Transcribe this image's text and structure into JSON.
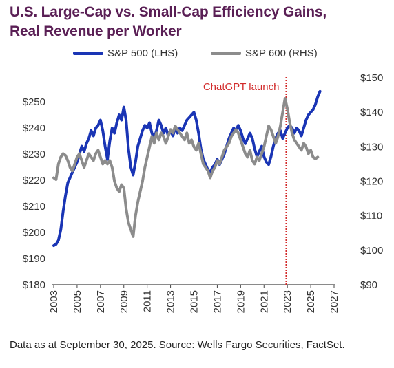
{
  "title_line1": "U.S. Large-Cap vs. Small-Cap Efficiency Gains,",
  "title_line2": "Real Revenue per Worker",
  "source": "Data as at September 30, 2025. Source: Wells Fargo Securities, FactSet.",
  "chart_data": {
    "type": "line",
    "title": "U.S. Large-Cap vs. Small-Cap Efficiency Gains, Real Revenue per Worker",
    "xlim": [
      2003,
      2027
    ],
    "x_ticks": [
      "2003",
      "2005",
      "2007",
      "2009",
      "2011",
      "2013",
      "2015",
      "2017",
      "2019",
      "2021",
      "2023",
      "2025",
      "2027"
    ],
    "y_left": {
      "lim": [
        180,
        250
      ],
      "ticks": [
        "$180",
        "$190",
        "$200",
        "$210",
        "$220",
        "$230",
        "$240",
        "$250"
      ]
    },
    "y_right": {
      "lim": [
        90,
        150
      ],
      "ticks": [
        "$90",
        "$100",
        "$110",
        "$120",
        "$130",
        "$140",
        "$150"
      ]
    },
    "grid": false,
    "legend": "top-center",
    "annotation": {
      "text": "ChatGPT launch",
      "x": 2022.9,
      "color": "#d22b2b",
      "style": "dotted-vertical-line"
    },
    "series": [
      {
        "name": "S&P 500 (LHS)",
        "axis": "left",
        "color": "#1a35b5",
        "points": [
          [
            2003.0,
            195.0
          ],
          [
            2003.2,
            195.5
          ],
          [
            2003.4,
            197
          ],
          [
            2003.6,
            201
          ],
          [
            2003.8,
            208
          ],
          [
            2004.0,
            214
          ],
          [
            2004.2,
            219
          ],
          [
            2004.4,
            221
          ],
          [
            2004.6,
            223
          ],
          [
            2004.8,
            225
          ],
          [
            2005.0,
            227
          ],
          [
            2005.2,
            230
          ],
          [
            2005.4,
            233
          ],
          [
            2005.6,
            231
          ],
          [
            2005.8,
            234
          ],
          [
            2006.0,
            236
          ],
          [
            2006.2,
            239
          ],
          [
            2006.4,
            237
          ],
          [
            2006.6,
            240
          ],
          [
            2006.8,
            241
          ],
          [
            2007.0,
            243
          ],
          [
            2007.2,
            239
          ],
          [
            2007.4,
            233
          ],
          [
            2007.6,
            228
          ],
          [
            2007.8,
            235
          ],
          [
            2008.0,
            240
          ],
          [
            2008.2,
            238
          ],
          [
            2008.4,
            242
          ],
          [
            2008.6,
            245
          ],
          [
            2008.8,
            243
          ],
          [
            2009.0,
            248
          ],
          [
            2009.2,
            243
          ],
          [
            2009.4,
            232
          ],
          [
            2009.6,
            225
          ],
          [
            2009.8,
            222
          ],
          [
            2010.0,
            227
          ],
          [
            2010.2,
            233
          ],
          [
            2010.4,
            236
          ],
          [
            2010.6,
            239
          ],
          [
            2010.8,
            241
          ],
          [
            2011.0,
            240
          ],
          [
            2011.2,
            242
          ],
          [
            2011.4,
            238
          ],
          [
            2011.6,
            236
          ],
          [
            2011.8,
            239
          ],
          [
            2012.0,
            243
          ],
          [
            2012.2,
            241
          ],
          [
            2012.4,
            238
          ],
          [
            2012.6,
            240
          ],
          [
            2012.8,
            237
          ],
          [
            2013.0,
            239
          ],
          [
            2013.2,
            237
          ],
          [
            2013.4,
            240
          ],
          [
            2013.6,
            238
          ],
          [
            2013.8,
            240
          ],
          [
            2014.0,
            239
          ],
          [
            2014.2,
            241
          ],
          [
            2014.4,
            243
          ],
          [
            2014.6,
            244
          ],
          [
            2014.8,
            245
          ],
          [
            2015.0,
            246
          ],
          [
            2015.2,
            243
          ],
          [
            2015.4,
            238
          ],
          [
            2015.6,
            232
          ],
          [
            2015.8,
            228
          ],
          [
            2016.0,
            226
          ],
          [
            2016.2,
            224
          ],
          [
            2016.4,
            223
          ],
          [
            2016.6,
            225
          ],
          [
            2016.8,
            226
          ],
          [
            2017.0,
            228
          ],
          [
            2017.2,
            226
          ],
          [
            2017.4,
            228
          ],
          [
            2017.6,
            230
          ],
          [
            2017.8,
            233
          ],
          [
            2018.0,
            236
          ],
          [
            2018.2,
            238
          ],
          [
            2018.4,
            240
          ],
          [
            2018.6,
            239
          ],
          [
            2018.8,
            241
          ],
          [
            2019.0,
            239
          ],
          [
            2019.2,
            236
          ],
          [
            2019.4,
            234
          ],
          [
            2019.6,
            236
          ],
          [
            2019.8,
            238
          ],
          [
            2020.0,
            236
          ],
          [
            2020.2,
            232
          ],
          [
            2020.4,
            229
          ],
          [
            2020.6,
            231
          ],
          [
            2020.8,
            233
          ],
          [
            2021.0,
            229
          ],
          [
            2021.2,
            227
          ],
          [
            2021.4,
            226
          ],
          [
            2021.6,
            229
          ],
          [
            2021.8,
            233
          ],
          [
            2022.0,
            236
          ],
          [
            2022.2,
            238
          ],
          [
            2022.4,
            239
          ],
          [
            2022.6,
            236
          ],
          [
            2022.8,
            238
          ],
          [
            2023.0,
            240
          ],
          [
            2023.2,
            241
          ],
          [
            2023.4,
            240
          ],
          [
            2023.6,
            238
          ],
          [
            2023.8,
            240
          ],
          [
            2024.0,
            239
          ],
          [
            2024.2,
            237
          ],
          [
            2024.4,
            240
          ],
          [
            2024.6,
            243
          ],
          [
            2024.8,
            245
          ],
          [
            2025.0,
            246
          ],
          [
            2025.2,
            247
          ],
          [
            2025.4,
            249
          ],
          [
            2025.6,
            252
          ],
          [
            2025.8,
            254
          ]
        ]
      },
      {
        "name": "S&P 600 (RHS)",
        "axis": "right",
        "color": "#8c8c8c",
        "points": [
          [
            2003.0,
            121
          ],
          [
            2003.2,
            120.5
          ],
          [
            2003.4,
            125
          ],
          [
            2003.6,
            127
          ],
          [
            2003.8,
            128
          ],
          [
            2004.0,
            127.5
          ],
          [
            2004.2,
            126
          ],
          [
            2004.4,
            124
          ],
          [
            2004.6,
            123
          ],
          [
            2004.8,
            125
          ],
          [
            2005.0,
            127
          ],
          [
            2005.2,
            128
          ],
          [
            2005.4,
            126
          ],
          [
            2005.6,
            124
          ],
          [
            2005.8,
            126
          ],
          [
            2006.0,
            128
          ],
          [
            2006.2,
            127
          ],
          [
            2006.4,
            126
          ],
          [
            2006.6,
            128
          ],
          [
            2006.8,
            129
          ],
          [
            2007.0,
            127
          ],
          [
            2007.2,
            125
          ],
          [
            2007.4,
            126
          ],
          [
            2007.6,
            125
          ],
          [
            2007.8,
            126
          ],
          [
            2008.0,
            124
          ],
          [
            2008.2,
            120
          ],
          [
            2008.4,
            118
          ],
          [
            2008.6,
            117
          ],
          [
            2008.8,
            119
          ],
          [
            2009.0,
            118
          ],
          [
            2009.2,
            112
          ],
          [
            2009.4,
            108
          ],
          [
            2009.6,
            106
          ],
          [
            2009.8,
            104
          ],
          [
            2010.0,
            110
          ],
          [
            2010.2,
            114
          ],
          [
            2010.4,
            117
          ],
          [
            2010.6,
            120
          ],
          [
            2010.8,
            124
          ],
          [
            2011.0,
            127
          ],
          [
            2011.2,
            130
          ],
          [
            2011.4,
            133
          ],
          [
            2011.6,
            131
          ],
          [
            2011.8,
            134
          ],
          [
            2012.0,
            132
          ],
          [
            2012.2,
            134
          ],
          [
            2012.4,
            133
          ],
          [
            2012.6,
            131
          ],
          [
            2012.8,
            133
          ],
          [
            2013.0,
            135
          ],
          [
            2013.2,
            134
          ],
          [
            2013.4,
            136
          ],
          [
            2013.6,
            135
          ],
          [
            2013.8,
            134
          ],
          [
            2014.0,
            133
          ],
          [
            2014.2,
            132
          ],
          [
            2014.4,
            134
          ],
          [
            2014.6,
            131
          ],
          [
            2014.8,
            132
          ],
          [
            2015.0,
            130
          ],
          [
            2015.2,
            129
          ],
          [
            2015.4,
            131
          ],
          [
            2015.6,
            128
          ],
          [
            2015.8,
            125
          ],
          [
            2016.0,
            124
          ],
          [
            2016.2,
            123
          ],
          [
            2016.4,
            121
          ],
          [
            2016.6,
            123
          ],
          [
            2016.8,
            124
          ],
          [
            2017.0,
            126
          ],
          [
            2017.2,
            125
          ],
          [
            2017.4,
            127
          ],
          [
            2017.6,
            129
          ],
          [
            2017.8,
            130
          ],
          [
            2018.0,
            131
          ],
          [
            2018.2,
            133
          ],
          [
            2018.4,
            134
          ],
          [
            2018.6,
            135
          ],
          [
            2018.8,
            134
          ],
          [
            2019.0,
            132
          ],
          [
            2019.2,
            130
          ],
          [
            2019.4,
            128
          ],
          [
            2019.6,
            127
          ],
          [
            2019.8,
            129
          ],
          [
            2020.0,
            126
          ],
          [
            2020.2,
            125
          ],
          [
            2020.4,
            127
          ],
          [
            2020.6,
            126
          ],
          [
            2020.8,
            128
          ],
          [
            2021.0,
            130
          ],
          [
            2021.2,
            133
          ],
          [
            2021.4,
            136
          ],
          [
            2021.6,
            135
          ],
          [
            2021.8,
            133
          ],
          [
            2022.0,
            131
          ],
          [
            2022.2,
            133
          ],
          [
            2022.4,
            136
          ],
          [
            2022.6,
            140
          ],
          [
            2022.8,
            144
          ],
          [
            2023.0,
            141
          ],
          [
            2023.2,
            137
          ],
          [
            2023.4,
            134
          ],
          [
            2023.6,
            132
          ],
          [
            2023.8,
            131
          ],
          [
            2024.0,
            130
          ],
          [
            2024.2,
            129
          ],
          [
            2024.4,
            131
          ],
          [
            2024.6,
            130
          ],
          [
            2024.8,
            128
          ],
          [
            2025.0,
            129
          ],
          [
            2025.2,
            127
          ],
          [
            2025.4,
            126.5
          ],
          [
            2025.6,
            127
          ]
        ]
      }
    ]
  }
}
